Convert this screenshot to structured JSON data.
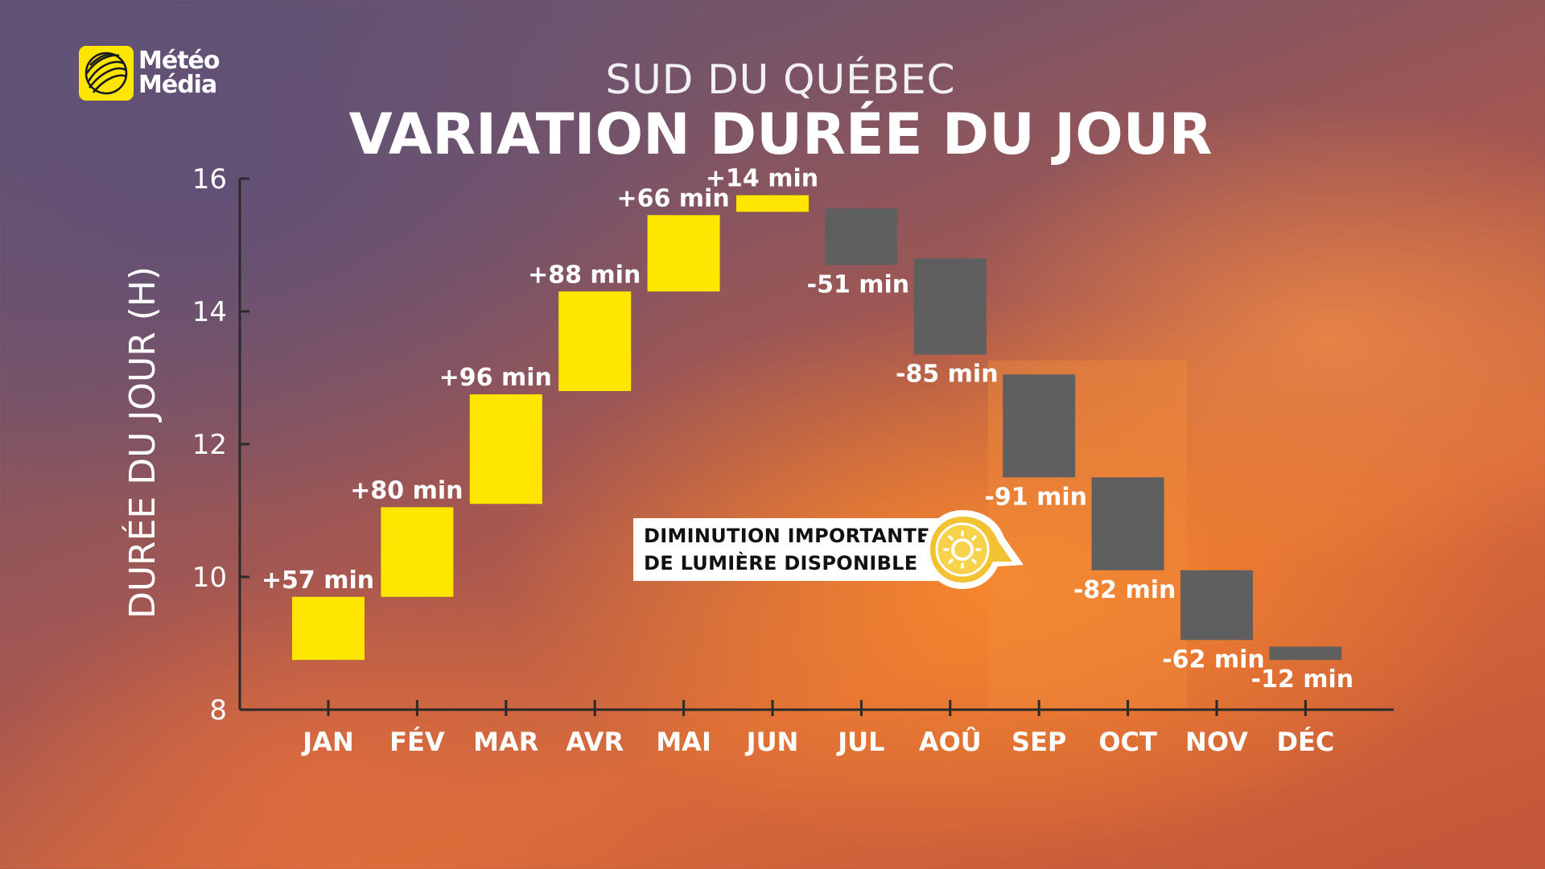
{
  "brand": {
    "line1": "Météo",
    "line2": "Média",
    "icon": "globe-logo-icon",
    "color": "#ffe600"
  },
  "header": {
    "subtitle": "SUD DU QUÉBEC",
    "title": "VARIATION DURÉE DU JOUR"
  },
  "callout": {
    "line1": "DIMINUTION IMPORTANTE",
    "line2": "DE LUMIÈRE DISPONIBLE",
    "icon": "sun-icon"
  },
  "chart_data": {
    "type": "bar",
    "subtype": "waterfall",
    "ylabel": "DURÉE DU JOUR (H)",
    "ylim": [
      8,
      16
    ],
    "yticks": [
      8,
      10,
      12,
      14,
      16
    ],
    "colors": {
      "increase": "#ffe600",
      "decrease": "#5f5f5f",
      "highlight": "#f08a3a"
    },
    "highlight_months": [
      "SEP",
      "OCT"
    ],
    "bars": [
      {
        "month": "JAN",
        "start": 8.75,
        "end": 9.7,
        "label": "+57 min"
      },
      {
        "month": "FÉV",
        "start": 9.7,
        "end": 11.05,
        "label": "+80 min"
      },
      {
        "month": "MAR",
        "start": 11.1,
        "end": 12.75,
        "label": "+96 min"
      },
      {
        "month": "AVR",
        "start": 12.8,
        "end": 14.3,
        "label": "+88 min"
      },
      {
        "month": "MAI",
        "start": 14.3,
        "end": 15.45,
        "label": "+66 min"
      },
      {
        "month": "JUN",
        "start": 15.5,
        "end": 15.75,
        "label": "+14 min"
      },
      {
        "month": "JUL",
        "start": 15.55,
        "end": 14.7,
        "label": "-51 min"
      },
      {
        "month": "AOÛ",
        "start": 14.8,
        "end": 13.35,
        "label": "-85 min"
      },
      {
        "month": "SEP",
        "start": 13.05,
        "end": 11.5,
        "label": "-91 min"
      },
      {
        "month": "OCT",
        "start": 11.5,
        "end": 10.1,
        "label": "-82 min"
      },
      {
        "month": "NOV",
        "start": 10.1,
        "end": 9.05,
        "label": "-62 min"
      },
      {
        "month": "DÉC",
        "start": 8.95,
        "end": 8.75,
        "label": "-12 min"
      }
    ]
  }
}
